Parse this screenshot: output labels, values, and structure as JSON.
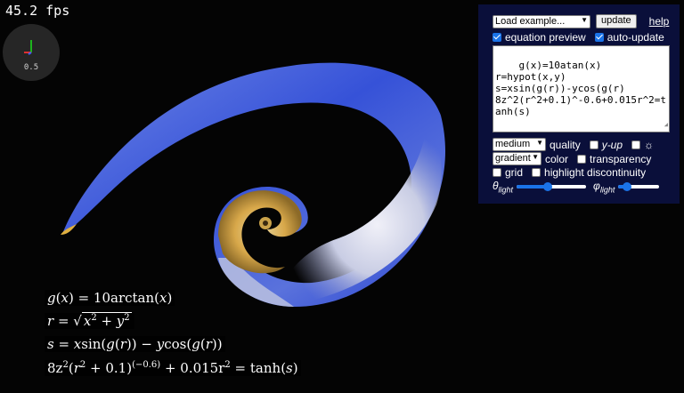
{
  "fps": "45.2 fps",
  "axis_widget": {
    "scale_label": "0.5"
  },
  "panel": {
    "example_select": "Load example...",
    "update_button": "update",
    "help_link": "help",
    "equation_preview": {
      "label": "equation preview",
      "checked": true
    },
    "auto_update": {
      "label": "auto-update",
      "checked": true
    },
    "equation_text": "g(x)=10atan(x)\nr=hypot(x,y)\ns=xsin(g(r))-ycos(g(r)\n8z^2(r^2+0.1)^-0.6+0.015r^2=tanh(s)",
    "quality_select": "medium",
    "quality_label": "quality",
    "y_up": {
      "label": "y-up",
      "checked": false
    },
    "light_toggle": {
      "icon": "sun-icon",
      "glyph": "☼",
      "checked": false
    },
    "color_select": "gradient",
    "color_label": "color",
    "transparency": {
      "label": "transparency",
      "checked": false
    },
    "grid": {
      "label": "grid",
      "checked": false
    },
    "highlight_discontinuity": {
      "label": "highlight discontinuity",
      "checked": false
    },
    "theta_light": {
      "symbol": "θ",
      "subscript": "light",
      "value": 0.45
    },
    "phi_light": {
      "symbol": "φ",
      "subscript": "light",
      "value": 0.22
    },
    "accent_color": "#1a73e8",
    "panel_color": "#0a0f3a"
  },
  "equations": {
    "line1": {
      "lhs": "g",
      "arg": "x",
      "rhs": "= 10arctan",
      "rhs_arg": "x"
    },
    "line2": {
      "lhs": "r =",
      "rad": "x",
      "rad2": " + y",
      "exp": "2"
    },
    "line3": {
      "lhs": "s = x",
      "func": "sin",
      "inner": "g",
      "inner2": "r",
      "mid": " − y",
      "func2": "cos"
    },
    "line4": {
      "coef": "8z",
      "exp2": "2",
      "paren": "r",
      "paren_add": " + 0.1",
      "exponent": "(−0.6)",
      "rest": "+ 0.015r",
      "rhs": "= tanh",
      "rhs_arg": "s"
    }
  }
}
